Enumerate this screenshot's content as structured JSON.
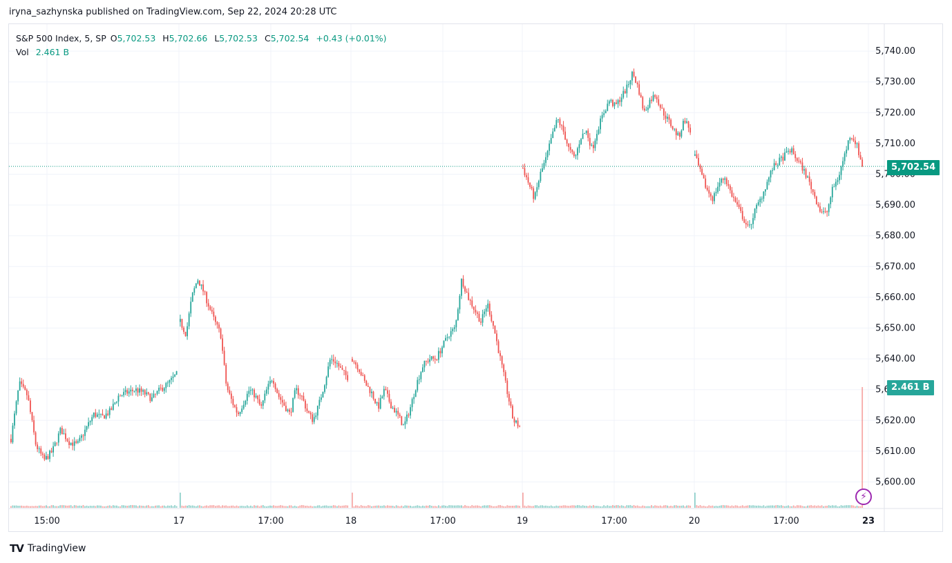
{
  "publish_line": "iryna_sazhynska published on TradingView.com, Sep 22, 2024 20:28 UTC",
  "legend": {
    "symbol": "S&P 500 Index, 5, SP",
    "o_label": "O",
    "o_value": "5,702.53",
    "h_label": "H",
    "h_value": "5,702.66",
    "l_label": "L",
    "l_value": "5,702.53",
    "c_label": "C",
    "c_value": "5,702.54",
    "change": "+0.43 (+0.01%)",
    "vol_label": "Vol",
    "vol_value": "2.461 B"
  },
  "last_price_tag": "5,702.54",
  "volume_tag": "2.461 B",
  "footer": {
    "logo": "TV",
    "brand": "TradingView"
  },
  "colors": {
    "up": "#26a69a",
    "down": "#ef5350",
    "up_text": "#089981",
    "grid": "#f0f3fa",
    "price_line": "#089981",
    "volume_tag": "#26a69a",
    "bolt": "#9c27b0"
  },
  "icons": {
    "bolt": "lightning-icon"
  },
  "chart_data": {
    "type": "candlestick",
    "title": "S&P 500 Index, 5, SP",
    "y_axis": {
      "ticks": [
        "5,600.00",
        "5,610.00",
        "5,620.00",
        "5,630.00",
        "5,640.00",
        "5,650.00",
        "5,660.00",
        "5,670.00",
        "5,680.00",
        "5,690.00",
        "5,700.00",
        "5,710.00",
        "5,720.00",
        "5,730.00",
        "5,740.00"
      ],
      "ylim": [
        5592,
        5744
      ]
    },
    "x_axis": {
      "ticks": [
        {
          "label": "15:00",
          "bold": false
        },
        {
          "label": "17",
          "bold": false
        },
        {
          "label": "17:00",
          "bold": false
        },
        {
          "label": "18",
          "bold": false
        },
        {
          "label": "17:00",
          "bold": false
        },
        {
          "label": "19",
          "bold": false
        },
        {
          "label": "17:00",
          "bold": false
        },
        {
          "label": "20",
          "bold": false
        },
        {
          "label": "17:00",
          "bold": false
        },
        {
          "label": "23",
          "bold": true
        }
      ]
    },
    "last_price": 5702.54,
    "grid": true,
    "sessions": [
      {
        "day": "Sep 16",
        "path": [
          5614,
          5632,
          5628,
          5612,
          5607,
          5610,
          5617,
          5613,
          5612,
          5617,
          5622,
          5621,
          5623,
          5628,
          5629,
          5630,
          5629,
          5627,
          5630,
          5632,
          5635
        ]
      },
      {
        "day": "Sep 17",
        "path": [
          5652,
          5648,
          5660,
          5666,
          5662,
          5657,
          5652,
          5648,
          5631,
          5626,
          5622,
          5626,
          5630,
          5628,
          5624,
          5630,
          5634,
          5628,
          5625,
          5622,
          5630,
          5628,
          5623,
          5620,
          5625,
          5632,
          5640,
          5639,
          5636,
          5634
        ]
      },
      {
        "day": "Sep 18",
        "path": [
          5640,
          5637,
          5632,
          5629,
          5624,
          5630,
          5625,
          5622,
          5618,
          5624,
          5632,
          5638,
          5640,
          5640,
          5644,
          5648,
          5650,
          5666,
          5660,
          5656,
          5652,
          5658,
          5650,
          5640,
          5630,
          5620,
          5618
        ]
      },
      {
        "day": "Sep 19",
        "path": [
          5702,
          5697,
          5692,
          5700,
          5705,
          5712,
          5718,
          5714,
          5708,
          5705,
          5712,
          5714,
          5708,
          5715,
          5720,
          5724,
          5722,
          5725,
          5728,
          5733,
          5728,
          5720,
          5724,
          5726,
          5721,
          5718,
          5715,
          5712,
          5718,
          5714
        ]
      },
      {
        "day": "Sep 20",
        "path": [
          5706,
          5700,
          5695,
          5692,
          5697,
          5699,
          5694,
          5690,
          5686,
          5682,
          5688,
          5692,
          5697,
          5702,
          5704,
          5706,
          5708,
          5705,
          5702,
          5698,
          5693,
          5688,
          5687,
          5695,
          5699,
          5706,
          5713,
          5710,
          5702.54
        ]
      }
    ],
    "volume": {
      "last_bar": "2.461 B",
      "session_open_spikes": true
    }
  }
}
